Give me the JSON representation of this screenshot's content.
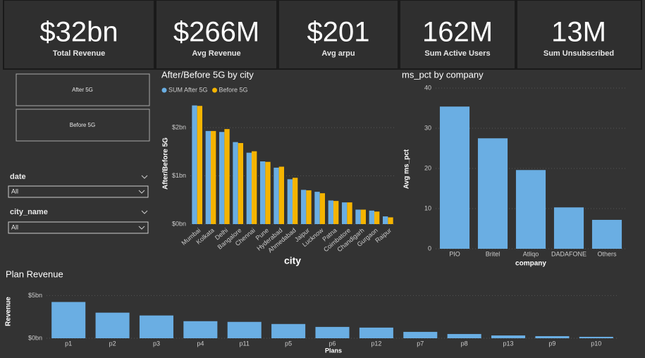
{
  "kpis": [
    {
      "value": "$32bn",
      "label": "Total Revenue"
    },
    {
      "value": "$266M",
      "label": "Avg Revenue"
    },
    {
      "value": "$201",
      "label": "Avg arpu"
    },
    {
      "value": "162M",
      "label": "Sum Active Users"
    },
    {
      "value": "13M",
      "label": "Sum Unsubscribed"
    }
  ],
  "buttons": [
    "After 5G",
    "Before 5G"
  ],
  "filters": [
    {
      "label": "date",
      "selection": "All"
    },
    {
      "label": "city_name",
      "selection": "All"
    }
  ],
  "chart_data": [
    {
      "type": "bar",
      "title": "After/Before 5G by city",
      "x_label": "city",
      "y_label": "After/Before 5G",
      "categories": [
        "Mumbai",
        "Kolkata",
        "Delhi",
        "Bangalore",
        "Chennai",
        "Pune",
        "Hyderabad",
        "Ahmedabad",
        "Jaipur",
        "Lucknow",
        "Patna",
        "Coimbatore",
        "Chandigarh",
        "Gurgaon",
        "Raipur"
      ],
      "series": [
        {
          "name": "SUM After 5G",
          "color": "#6aaee3",
          "values": [
            2.46,
            1.93,
            1.91,
            1.7,
            1.48,
            1.3,
            1.17,
            0.93,
            0.71,
            0.67,
            0.49,
            0.45,
            0.3,
            0.28,
            0.16
          ]
        },
        {
          "name": "Before 5G",
          "color": "#f5b400",
          "values": [
            2.45,
            1.93,
            1.97,
            1.68,
            1.51,
            1.29,
            1.19,
            0.96,
            0.7,
            0.64,
            0.48,
            0.45,
            0.3,
            0.26,
            0.14
          ]
        }
      ],
      "ylim": [
        0,
        2.6
      ],
      "yticks": [
        {
          "value": 0,
          "label": "$0bn"
        },
        {
          "value": 1,
          "label": "$1bn"
        },
        {
          "value": 2,
          "label": "$2bn"
        }
      ],
      "grid": true,
      "legend": "top-left"
    },
    {
      "type": "bar",
      "title": "ms_pct by company",
      "x_label": "company",
      "y_label": "Avg ms_pct",
      "categories": [
        "PIO",
        "Britel",
        "Atliqo",
        "DADAFONE",
        "Others"
      ],
      "values": [
        35.4,
        27.5,
        19.6,
        10.3,
        7.2
      ],
      "color": "#6aaee3",
      "ylim": [
        0,
        40
      ],
      "yticks": [
        0,
        10,
        20,
        30,
        40
      ],
      "grid": true
    },
    {
      "type": "bar",
      "title": "Plan Revenue",
      "x_label": "Plans",
      "y_label": "Revenue",
      "categories": [
        "p1",
        "p2",
        "p3",
        "p4",
        "p11",
        "p5",
        "p6",
        "p12",
        "p7",
        "p8",
        "p13",
        "p9",
        "p10"
      ],
      "values": [
        4.25,
        3.0,
        2.67,
        2.0,
        1.92,
        1.67,
        1.33,
        1.25,
        0.75,
        0.5,
        0.33,
        0.25,
        0.17
      ],
      "color": "#6aaee3",
      "ylim": [
        0,
        5.2
      ],
      "yticks": [
        {
          "value": 0,
          "label": "$0bn"
        },
        {
          "value": 5,
          "label": "$5bn"
        }
      ],
      "grid": true
    }
  ]
}
